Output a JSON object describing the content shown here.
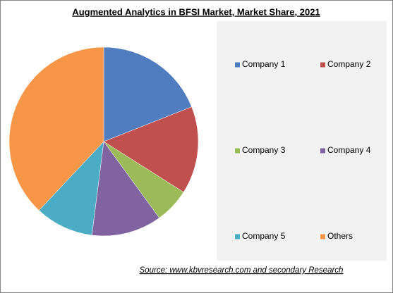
{
  "chart_data": {
    "type": "pie",
    "title": "Augmented Analytics in BFSI Market, Market Share, 2021",
    "categories": [
      "Company 1",
      "Company 2",
      "Company 3",
      "Company 4",
      "Company 5",
      "Others"
    ],
    "values": [
      19,
      15,
      6,
      12,
      10,
      38
    ],
    "colors": [
      "#4f7dbf",
      "#c0504d",
      "#9bbb59",
      "#8064a2",
      "#4bacc6",
      "#f79646"
    ],
    "source": "Source:  www.kbvresearch.com  and secondary Research"
  }
}
